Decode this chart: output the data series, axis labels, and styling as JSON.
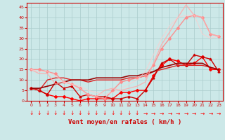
{
  "xlabel": "Vent moyen/en rafales ( km/h )",
  "bg_color": "#cce8e8",
  "grid_color": "#aacccc",
  "xlim": [
    -0.5,
    23.5
  ],
  "ylim": [
    0,
    47
  ],
  "yticks": [
    0,
    5,
    10,
    15,
    20,
    25,
    30,
    35,
    40,
    45
  ],
  "xticks": [
    0,
    1,
    2,
    3,
    4,
    5,
    6,
    7,
    8,
    9,
    10,
    11,
    12,
    13,
    14,
    15,
    16,
    17,
    18,
    19,
    20,
    21,
    22,
    23
  ],
  "lines": [
    {
      "x": [
        0,
        1,
        2,
        3,
        4,
        5,
        6,
        7,
        8,
        9,
        10,
        11,
        12,
        13,
        14,
        15,
        16,
        17,
        18,
        19,
        20,
        21,
        22,
        23
      ],
      "y": [
        6,
        5,
        3,
        2,
        2,
        1,
        0,
        1,
        1,
        1,
        1,
        4,
        4,
        5,
        5,
        12,
        17,
        20,
        19,
        17,
        18,
        21,
        15,
        15
      ],
      "color": "#ff0000",
      "alpha": 1.0,
      "marker": "D",
      "markersize": 2.0,
      "linewidth": 1.0
    },
    {
      "x": [
        0,
        1,
        2,
        3,
        4,
        5,
        6,
        7,
        8,
        9,
        10,
        11,
        12,
        13,
        14,
        15,
        16,
        17,
        18,
        19,
        20,
        21,
        22,
        23
      ],
      "y": [
        6,
        5,
        3,
        9,
        6,
        7,
        2,
        3,
        2,
        2,
        1,
        1,
        2,
        1,
        5,
        11,
        18,
        20,
        17,
        17,
        22,
        21,
        20,
        14
      ],
      "color": "#cc0000",
      "alpha": 1.0,
      "marker": "^",
      "markersize": 2.0,
      "linewidth": 1.0
    },
    {
      "x": [
        0,
        1,
        2,
        3,
        4,
        5,
        6,
        7,
        8,
        9,
        10,
        11,
        12,
        13,
        14,
        15,
        16,
        17,
        18,
        19,
        20,
        21,
        22,
        23
      ],
      "y": [
        6,
        5,
        10,
        11,
        11,
        10,
        10,
        9,
        10,
        10,
        10,
        10,
        11,
        11,
        12,
        14,
        15,
        16,
        17,
        17,
        17,
        17,
        16,
        15
      ],
      "color": "#dd2222",
      "alpha": 1.0,
      "marker": null,
      "markersize": 0,
      "linewidth": 1.0
    },
    {
      "x": [
        0,
        1,
        2,
        3,
        4,
        5,
        6,
        7,
        8,
        9,
        10,
        11,
        12,
        13,
        14,
        15,
        16,
        17,
        18,
        19,
        20,
        21,
        22,
        23
      ],
      "y": [
        6,
        6,
        7,
        8,
        9,
        10,
        10,
        10,
        11,
        11,
        11,
        11,
        12,
        12,
        13,
        14,
        16,
        17,
        18,
        18,
        18,
        18,
        16,
        15
      ],
      "color": "#990000",
      "alpha": 1.0,
      "marker": null,
      "markersize": 0,
      "linewidth": 1.2
    },
    {
      "x": [
        0,
        1,
        2,
        3,
        4,
        5,
        6,
        7,
        8,
        9,
        10,
        11,
        12,
        13,
        14,
        15,
        16,
        17,
        18,
        19,
        20,
        21,
        22,
        23
      ],
      "y": [
        15,
        15,
        14,
        13,
        9,
        8,
        6,
        3,
        2,
        1,
        5,
        9,
        10,
        11,
        12,
        17,
        25,
        30,
        35,
        40,
        41,
        40,
        32,
        31
      ],
      "color": "#ff8888",
      "alpha": 0.9,
      "marker": "D",
      "markersize": 2.0,
      "linewidth": 1.0
    },
    {
      "x": [
        0,
        1,
        2,
        3,
        4,
        5,
        6,
        7,
        8,
        9,
        10,
        11,
        12,
        13,
        14,
        15,
        16,
        17,
        18,
        19,
        20,
        21,
        22,
        23
      ],
      "y": [
        15,
        13,
        13,
        8,
        9,
        8,
        6,
        3,
        2,
        5,
        6,
        5,
        6,
        7,
        9,
        18,
        27,
        33,
        40,
        46,
        41,
        40,
        32,
        31
      ],
      "color": "#ffaaaa",
      "alpha": 0.8,
      "marker": null,
      "markersize": 0,
      "linewidth": 1.0
    },
    {
      "x": [
        0,
        1,
        2,
        3,
        4,
        5,
        6,
        7,
        8,
        9,
        10,
        11,
        12,
        13,
        14,
        15,
        16,
        17,
        18,
        19,
        20,
        21,
        22,
        23
      ],
      "y": [
        15,
        14,
        14,
        12,
        9,
        8,
        7,
        5,
        4,
        3,
        4,
        6,
        8,
        10,
        14,
        22,
        30,
        36,
        40,
        41,
        41,
        32,
        30,
        31
      ],
      "color": "#ffcccc",
      "alpha": 0.7,
      "marker": null,
      "markersize": 0,
      "linewidth": 0.8
    }
  ],
  "arrows_down_x": [
    0,
    1,
    2,
    3,
    4,
    5,
    6,
    7,
    8,
    9,
    10,
    11,
    12,
    13
  ],
  "arrows_right_x": [
    14,
    15,
    16,
    17,
    18,
    19,
    20,
    21,
    22,
    23
  ],
  "arrow_color": "#ff0000",
  "arrow_fontsize": 5.5,
  "xlabel_fontsize": 6.5,
  "xlabel_color": "#cc0000",
  "tick_fontsize": 4.5,
  "tick_color": "#cc0000"
}
